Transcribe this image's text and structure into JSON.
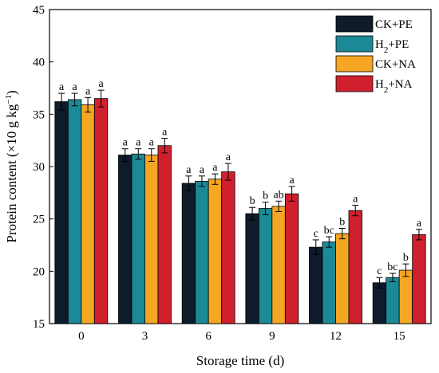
{
  "chart_data": {
    "type": "bar",
    "xlabel": "Storage time (d)",
    "ylabel_main": "Protein content (×10 g kg",
    "ylabel_sup": "−1",
    "ylabel_end": ")",
    "ylim": [
      15,
      45
    ],
    "yticks": [
      "15",
      "20",
      "25",
      "30",
      "35",
      "40",
      "45"
    ],
    "categories": [
      "0",
      "3",
      "6",
      "9",
      "12",
      "15"
    ],
    "legend_position": "top-right",
    "grid": false,
    "series": [
      {
        "name": "CK+PE",
        "name_parts": [
          "CK+PE",
          "",
          ""
        ],
        "color": "#0d1b2a",
        "values": [
          36.2,
          31.1,
          28.4,
          25.5,
          22.3,
          18.9
        ],
        "errors": [
          0.8,
          0.6,
          0.7,
          0.6,
          0.7,
          0.5
        ],
        "labels": [
          "a",
          "a",
          "a",
          "b",
          "c",
          "c"
        ]
      },
      {
        "name": "H2+PE",
        "name_parts": [
          "H",
          "2",
          "+PE"
        ],
        "color": "#1b8a96",
        "values": [
          36.4,
          31.2,
          28.6,
          26.0,
          22.8,
          19.4
        ],
        "errors": [
          0.6,
          0.5,
          0.5,
          0.6,
          0.5,
          0.4
        ],
        "labels": [
          "a",
          "a",
          "a",
          "b",
          "bc",
          "bc"
        ]
      },
      {
        "name": "CK+NA",
        "name_parts": [
          "CK+NA",
          "",
          ""
        ],
        "color": "#f5a623",
        "values": [
          35.9,
          31.1,
          28.8,
          26.2,
          23.6,
          20.1
        ],
        "errors": [
          0.7,
          0.6,
          0.5,
          0.5,
          0.5,
          0.6
        ],
        "labels": [
          "a",
          "a",
          "a",
          "ab",
          "b",
          "b"
        ]
      },
      {
        "name": "H2+NA",
        "name_parts": [
          "H",
          "2",
          "+NA"
        ],
        "color": "#d0202e",
        "values": [
          36.5,
          32.0,
          29.5,
          27.4,
          25.8,
          23.5
        ],
        "errors": [
          0.8,
          0.7,
          0.8,
          0.7,
          0.5,
          0.5
        ],
        "labels": [
          "a",
          "a",
          "a",
          "a",
          "a",
          "a"
        ]
      }
    ]
  }
}
